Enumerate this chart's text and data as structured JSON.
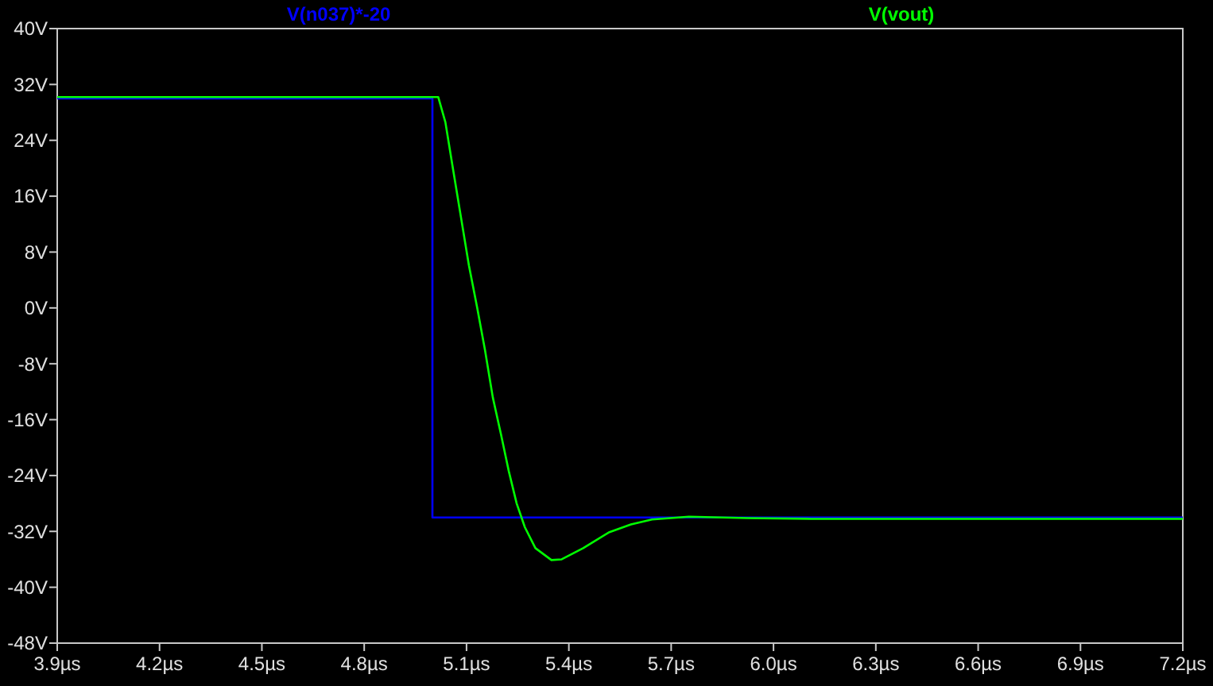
{
  "chart_data": {
    "type": "line",
    "legend": "top",
    "grid": false,
    "xlim": [
      3.9,
      7.2
    ],
    "xticks": [
      {
        "value": 3.9,
        "label": "3.9µs"
      },
      {
        "value": 4.2,
        "label": "4.2µs"
      },
      {
        "value": 4.5,
        "label": "4.5µs"
      },
      {
        "value": 4.8,
        "label": "4.8µs"
      },
      {
        "value": 5.1,
        "label": "5.1µs"
      },
      {
        "value": 5.4,
        "label": "5.4µs"
      },
      {
        "value": 5.7,
        "label": "5.7µs"
      },
      {
        "value": 6.0,
        "label": "6.0µs"
      },
      {
        "value": 6.3,
        "label": "6.3µs"
      },
      {
        "value": 6.6,
        "label": "6.6µs"
      },
      {
        "value": 6.9,
        "label": "6.9µs"
      },
      {
        "value": 7.2,
        "label": "7.2µs"
      }
    ],
    "ylim": [
      -48,
      40
    ],
    "yticks": [
      {
        "value": -48,
        "label": "-48V"
      },
      {
        "value": -40,
        "label": "-40V"
      },
      {
        "value": -32,
        "label": "-32V"
      },
      {
        "value": -24,
        "label": "-24V"
      },
      {
        "value": -16,
        "label": "-16V"
      },
      {
        "value": -8,
        "label": "-8V"
      },
      {
        "value": 0,
        "label": "0V"
      },
      {
        "value": 8,
        "label": "8V"
      },
      {
        "value": 16,
        "label": "16V"
      },
      {
        "value": 24,
        "label": "24V"
      },
      {
        "value": 32,
        "label": "32V"
      },
      {
        "value": 40,
        "label": "40V"
      }
    ],
    "series": [
      {
        "name": "V(n037)*-20",
        "color": "#0000ff",
        "x": [
          3.9,
          5.0,
          5.0,
          7.2
        ],
        "values": [
          30,
          30,
          -30,
          -30
        ]
      },
      {
        "name": "V(vout)",
        "color": "#00ff00",
        "x": [
          3.9,
          4.8,
          5.017,
          5.038,
          5.061,
          5.084,
          5.107,
          5.131,
          5.154,
          5.177,
          5.201,
          5.224,
          5.247,
          5.271,
          5.302,
          5.349,
          5.379,
          5.442,
          5.519,
          5.582,
          5.644,
          5.752,
          5.923,
          6.11,
          7.2
        ],
        "values": [
          30.2,
          30.2,
          30.2,
          26.6,
          19.7,
          12.9,
          6.1,
          0.1,
          -6.0,
          -12.8,
          -18.1,
          -23.4,
          -28.0,
          -31.4,
          -34.4,
          -36.1,
          -36.0,
          -34.4,
          -32.1,
          -31.0,
          -30.3,
          -29.9,
          -30.1,
          -30.2,
          -30.2
        ]
      }
    ]
  }
}
